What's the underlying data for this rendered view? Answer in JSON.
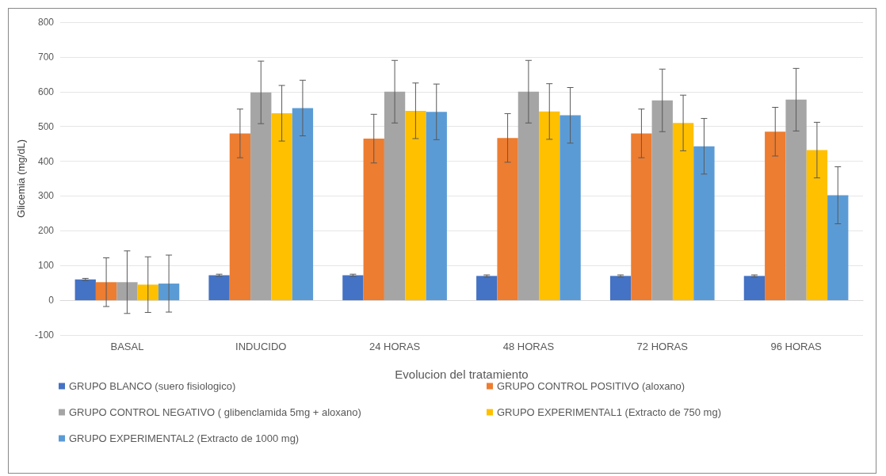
{
  "chart_data": {
    "type": "bar",
    "xlabel": "Evolucion del tratamiento",
    "ylabel": "Glicemia (mg/dL)",
    "categories": [
      "BASAL",
      "INDUCIDO",
      "24 HORAS",
      "48 HORAS",
      "72 HORAS",
      "96 HORAS"
    ],
    "series": [
      {
        "name": "GRUPO BLANCO (suero fisiologico)",
        "color": "#4472c4",
        "values": [
          60,
          72,
          72,
          70,
          70,
          70
        ],
        "errors": [
          3,
          3,
          3,
          3,
          3,
          3
        ]
      },
      {
        "name": "GRUPO CONTROL POSITIVO (aloxano)",
        "color": "#ed7d31",
        "values": [
          52,
          480,
          465,
          467,
          480,
          485
        ],
        "errors": [
          70,
          70,
          70,
          70,
          70,
          70
        ]
      },
      {
        "name": "GRUPO CONTROL NEGATIVO ( glibenclamida 5mg + aloxano)",
        "color": "#a5a5a5",
        "values": [
          52,
          598,
          600,
          600,
          575,
          577
        ],
        "errors": [
          90,
          90,
          90,
          90,
          90,
          90
        ]
      },
      {
        "name": "GRUPO EXPERIMENTAL1 (Extracto de 750 mg)",
        "color": "#ffc000",
        "values": [
          45,
          538,
          545,
          543,
          510,
          432
        ],
        "errors": [
          80,
          80,
          80,
          80,
          80,
          80
        ]
      },
      {
        "name": "GRUPO EXPERIMENTAL2 (Extracto de 1000 mg)",
        "color": "#5b9bd5",
        "values": [
          48,
          553,
          542,
          532,
          443,
          302
        ],
        "errors": [
          82,
          80,
          80,
          80,
          80,
          82
        ]
      }
    ],
    "ylim": [
      -100,
      800
    ],
    "yticks": [
      -100,
      0,
      100,
      200,
      300,
      400,
      500,
      600,
      700,
      800
    ],
    "grid": "y",
    "legend": "bottom"
  }
}
